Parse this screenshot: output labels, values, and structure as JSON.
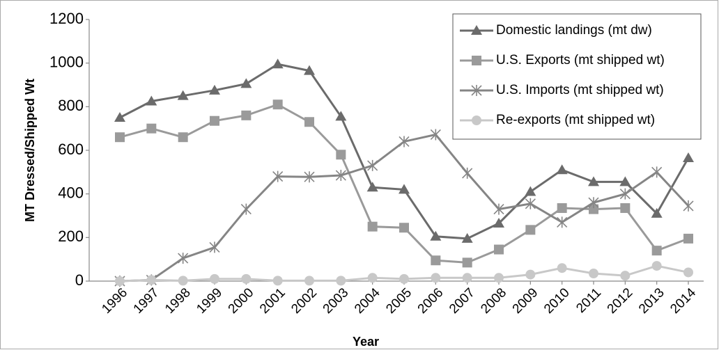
{
  "chart_data": {
    "type": "line",
    "x_label": "Year",
    "y_label": "MT Dressed/Shipped Wt",
    "categories": [
      "1996",
      "1997",
      "1998",
      "1999",
      "2000",
      "2001",
      "2002",
      "2003",
      "2004",
      "2005",
      "2006",
      "2007",
      "2008",
      "2009",
      "2010",
      "2011",
      "2012",
      "2013",
      "2014"
    ],
    "series": [
      {
        "name": "Domestic landings (mt dw)",
        "color": "#6b6b6b",
        "marker": "triangle",
        "values": [
          750,
          825,
          850,
          875,
          905,
          995,
          965,
          755,
          430,
          420,
          205,
          195,
          265,
          410,
          510,
          455,
          455,
          310,
          565
        ]
      },
      {
        "name": "U.S. Exports (mt shipped wt)",
        "color": "#9a9a9a",
        "marker": "square",
        "values": [
          660,
          700,
          660,
          735,
          760,
          810,
          730,
          580,
          250,
          245,
          95,
          85,
          145,
          235,
          335,
          330,
          335,
          140,
          195
        ]
      },
      {
        "name": "U.S. Imports (mt shipped wt)",
        "color": "#858585",
        "marker": "star",
        "values": [
          0,
          5,
          105,
          155,
          330,
          480,
          478,
          485,
          530,
          640,
          672,
          495,
          330,
          355,
          270,
          360,
          400,
          500,
          345
        ]
      },
      {
        "name": "Re-exports (mt shipped wt)",
        "color": "#c8c8c8",
        "marker": "circle",
        "values": [
          0,
          5,
          2,
          10,
          10,
          2,
          2,
          2,
          15,
          10,
          15,
          15,
          15,
          30,
          60,
          35,
          25,
          70,
          40
        ]
      }
    ],
    "ylim": [
      0,
      1200
    ],
    "yticks": [
      0,
      200,
      400,
      600,
      800,
      1000,
      1200
    ],
    "grid": false,
    "legend": "upper right"
  }
}
